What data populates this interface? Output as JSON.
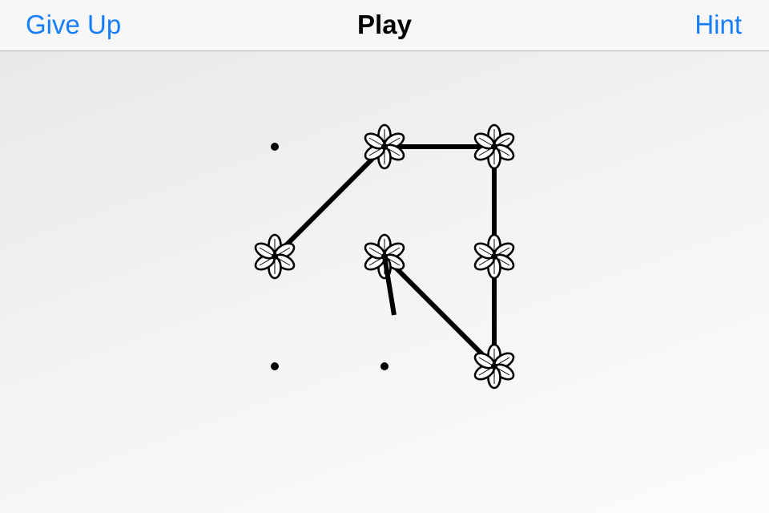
{
  "navbar": {
    "left_label": "Give Up",
    "title": "Play",
    "right_label": "Hint",
    "accent_color": "#167efb"
  },
  "board": {
    "grid": {
      "rows": 3,
      "cols": 3
    },
    "empty_icon": "dot-icon",
    "visited_icon": "flower-icon",
    "visited": [
      {
        "row": 0,
        "col": 1
      },
      {
        "row": 0,
        "col": 2
      },
      {
        "row": 1,
        "col": 0
      },
      {
        "row": 1,
        "col": 1
      },
      {
        "row": 1,
        "col": 2
      },
      {
        "row": 2,
        "col": 2
      }
    ],
    "path": [
      {
        "row": 1,
        "col": 0
      },
      {
        "row": 0,
        "col": 1
      },
      {
        "row": 0,
        "col": 2
      },
      {
        "row": 1,
        "col": 2
      },
      {
        "row": 2,
        "col": 2
      },
      {
        "row": 1,
        "col": 1
      }
    ],
    "stroke_color": "#000000"
  }
}
